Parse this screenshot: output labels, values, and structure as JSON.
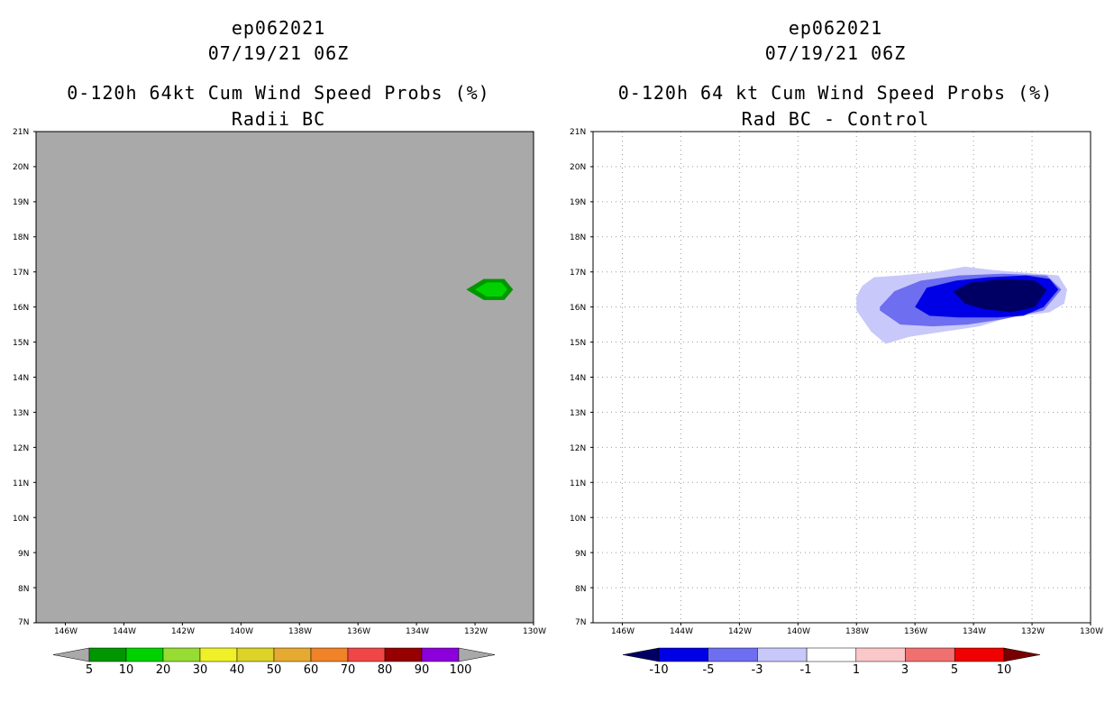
{
  "left_panel": {
    "storm_id": "ep062021",
    "datetime": "07/19/21 06Z",
    "title": "0-120h 64kt Cum Wind Speed Probs (%)",
    "subtitle": "Radii BC",
    "background_color": "#a9a9a9",
    "colorbar": {
      "labels": [
        "5",
        "10",
        "20",
        "30",
        "40",
        "50",
        "60",
        "70",
        "80",
        "90",
        "100"
      ],
      "colors": [
        "#009600",
        "#00d200",
        "#96dc32",
        "#f0f028",
        "#dcd228",
        "#e6aa32",
        "#f08228",
        "#f04646",
        "#960000",
        "#8c00dc"
      ],
      "end_colors": [
        "#a9a9a9",
        "#a9a9a9"
      ]
    }
  },
  "right_panel": {
    "storm_id": "ep062021",
    "datetime": "07/19/21 06Z",
    "title": "0-120h 64 kt Cum Wind Speed Probs (%)",
    "subtitle": "Rad BC - Control",
    "colorbar": {
      "labels": [
        "-10",
        "-5",
        "-3",
        "-1",
        "1",
        "3",
        "5",
        "10"
      ],
      "colors": [
        "#0000e6",
        "#6e6ef0",
        "#c8c8fa",
        "#ffffff",
        "#fac8c8",
        "#f07070",
        "#f00000"
      ],
      "end_colors": [
        "#000064",
        "#780000"
      ]
    }
  },
  "map": {
    "lat_labels": [
      "21N",
      "20N",
      "19N",
      "18N",
      "17N",
      "16N",
      "15N",
      "14N",
      "13N",
      "12N",
      "11N",
      "10N",
      "9N",
      "8N",
      "7N"
    ],
    "lon_labels": [
      "146W",
      "144W",
      "142W",
      "140W",
      "138W",
      "136W",
      "134W",
      "132W",
      "130W"
    ],
    "lat_range": [
      7,
      21
    ],
    "lon_range": [
      -147,
      -130
    ],
    "lon_ticks": [
      -146,
      -144,
      -142,
      -140,
      -138,
      -136,
      -134,
      -132,
      -130
    ]
  },
  "features": {
    "left_prob_area": {
      "center_lon": -131.3,
      "center_lat": 16.5,
      "levels": [
        {
          "percent": 5,
          "color": "#009600",
          "lonlat": [
            [
              -132.3,
              16.5
            ],
            [
              -131.7,
              16.8
            ],
            [
              -131.0,
              16.8
            ],
            [
              -130.7,
              16.5
            ],
            [
              -131.0,
              16.2
            ],
            [
              -131.7,
              16.2
            ]
          ]
        },
        {
          "percent": 10,
          "color": "#00d200",
          "lonlat": [
            [
              -132.0,
              16.5
            ],
            [
              -131.6,
              16.7
            ],
            [
              -131.1,
              16.7
            ],
            [
              -130.9,
              16.5
            ],
            [
              -131.1,
              16.3
            ],
            [
              -131.6,
              16.3
            ]
          ]
        }
      ]
    },
    "right_diff_area": {
      "levels": [
        {
          "value": -1,
          "color": "#c8c8fa",
          "lonlat": [
            [
              -137.8,
              16.6
            ],
            [
              -137.4,
              16.85
            ],
            [
              -136.5,
              16.9
            ],
            [
              -135.3,
              17.0
            ],
            [
              -134.3,
              17.15
            ],
            [
              -133.3,
              17.05
            ],
            [
              -131.8,
              16.95
            ],
            [
              -131.1,
              16.9
            ],
            [
              -130.8,
              16.5
            ],
            [
              -130.9,
              16.1
            ],
            [
              -131.4,
              15.85
            ],
            [
              -132.8,
              15.7
            ],
            [
              -133.8,
              15.45
            ],
            [
              -135.0,
              15.3
            ],
            [
              -136.2,
              15.15
            ],
            [
              -137.0,
              14.95
            ],
            [
              -137.5,
              15.3
            ],
            [
              -138.0,
              15.9
            ],
            [
              -138.0,
              16.3
            ]
          ]
        },
        {
          "value": -3,
          "color": "#6e6ef0",
          "lonlat": [
            [
              -137.2,
              16.0
            ],
            [
              -136.7,
              16.45
            ],
            [
              -135.8,
              16.75
            ],
            [
              -134.5,
              16.9
            ],
            [
              -133.0,
              16.95
            ],
            [
              -131.5,
              16.9
            ],
            [
              -131.0,
              16.5
            ],
            [
              -131.6,
              15.9
            ],
            [
              -133.0,
              15.65
            ],
            [
              -134.2,
              15.5
            ],
            [
              -135.4,
              15.45
            ],
            [
              -136.5,
              15.5
            ],
            [
              -137.2,
              15.9
            ]
          ]
        },
        {
          "value": -5,
          "color": "#0000e6",
          "lonlat": [
            [
              -136.0,
              16.0
            ],
            [
              -135.6,
              16.55
            ],
            [
              -134.6,
              16.75
            ],
            [
              -133.5,
              16.85
            ],
            [
              -132.2,
              16.9
            ],
            [
              -131.4,
              16.8
            ],
            [
              -131.1,
              16.5
            ],
            [
              -131.6,
              16.0
            ],
            [
              -132.3,
              15.75
            ],
            [
              -133.2,
              15.7
            ],
            [
              -134.5,
              15.7
            ],
            [
              -135.5,
              15.75
            ]
          ]
        },
        {
          "value": -10,
          "color": "#000064",
          "lonlat": [
            [
              -134.7,
              16.45
            ],
            [
              -134.1,
              16.7
            ],
            [
              -133.0,
              16.8
            ],
            [
              -131.9,
              16.75
            ],
            [
              -131.5,
              16.5
            ],
            [
              -131.9,
              16.0
            ],
            [
              -132.7,
              15.85
            ],
            [
              -133.7,
              15.95
            ],
            [
              -134.3,
              16.1
            ]
          ]
        }
      ]
    }
  }
}
